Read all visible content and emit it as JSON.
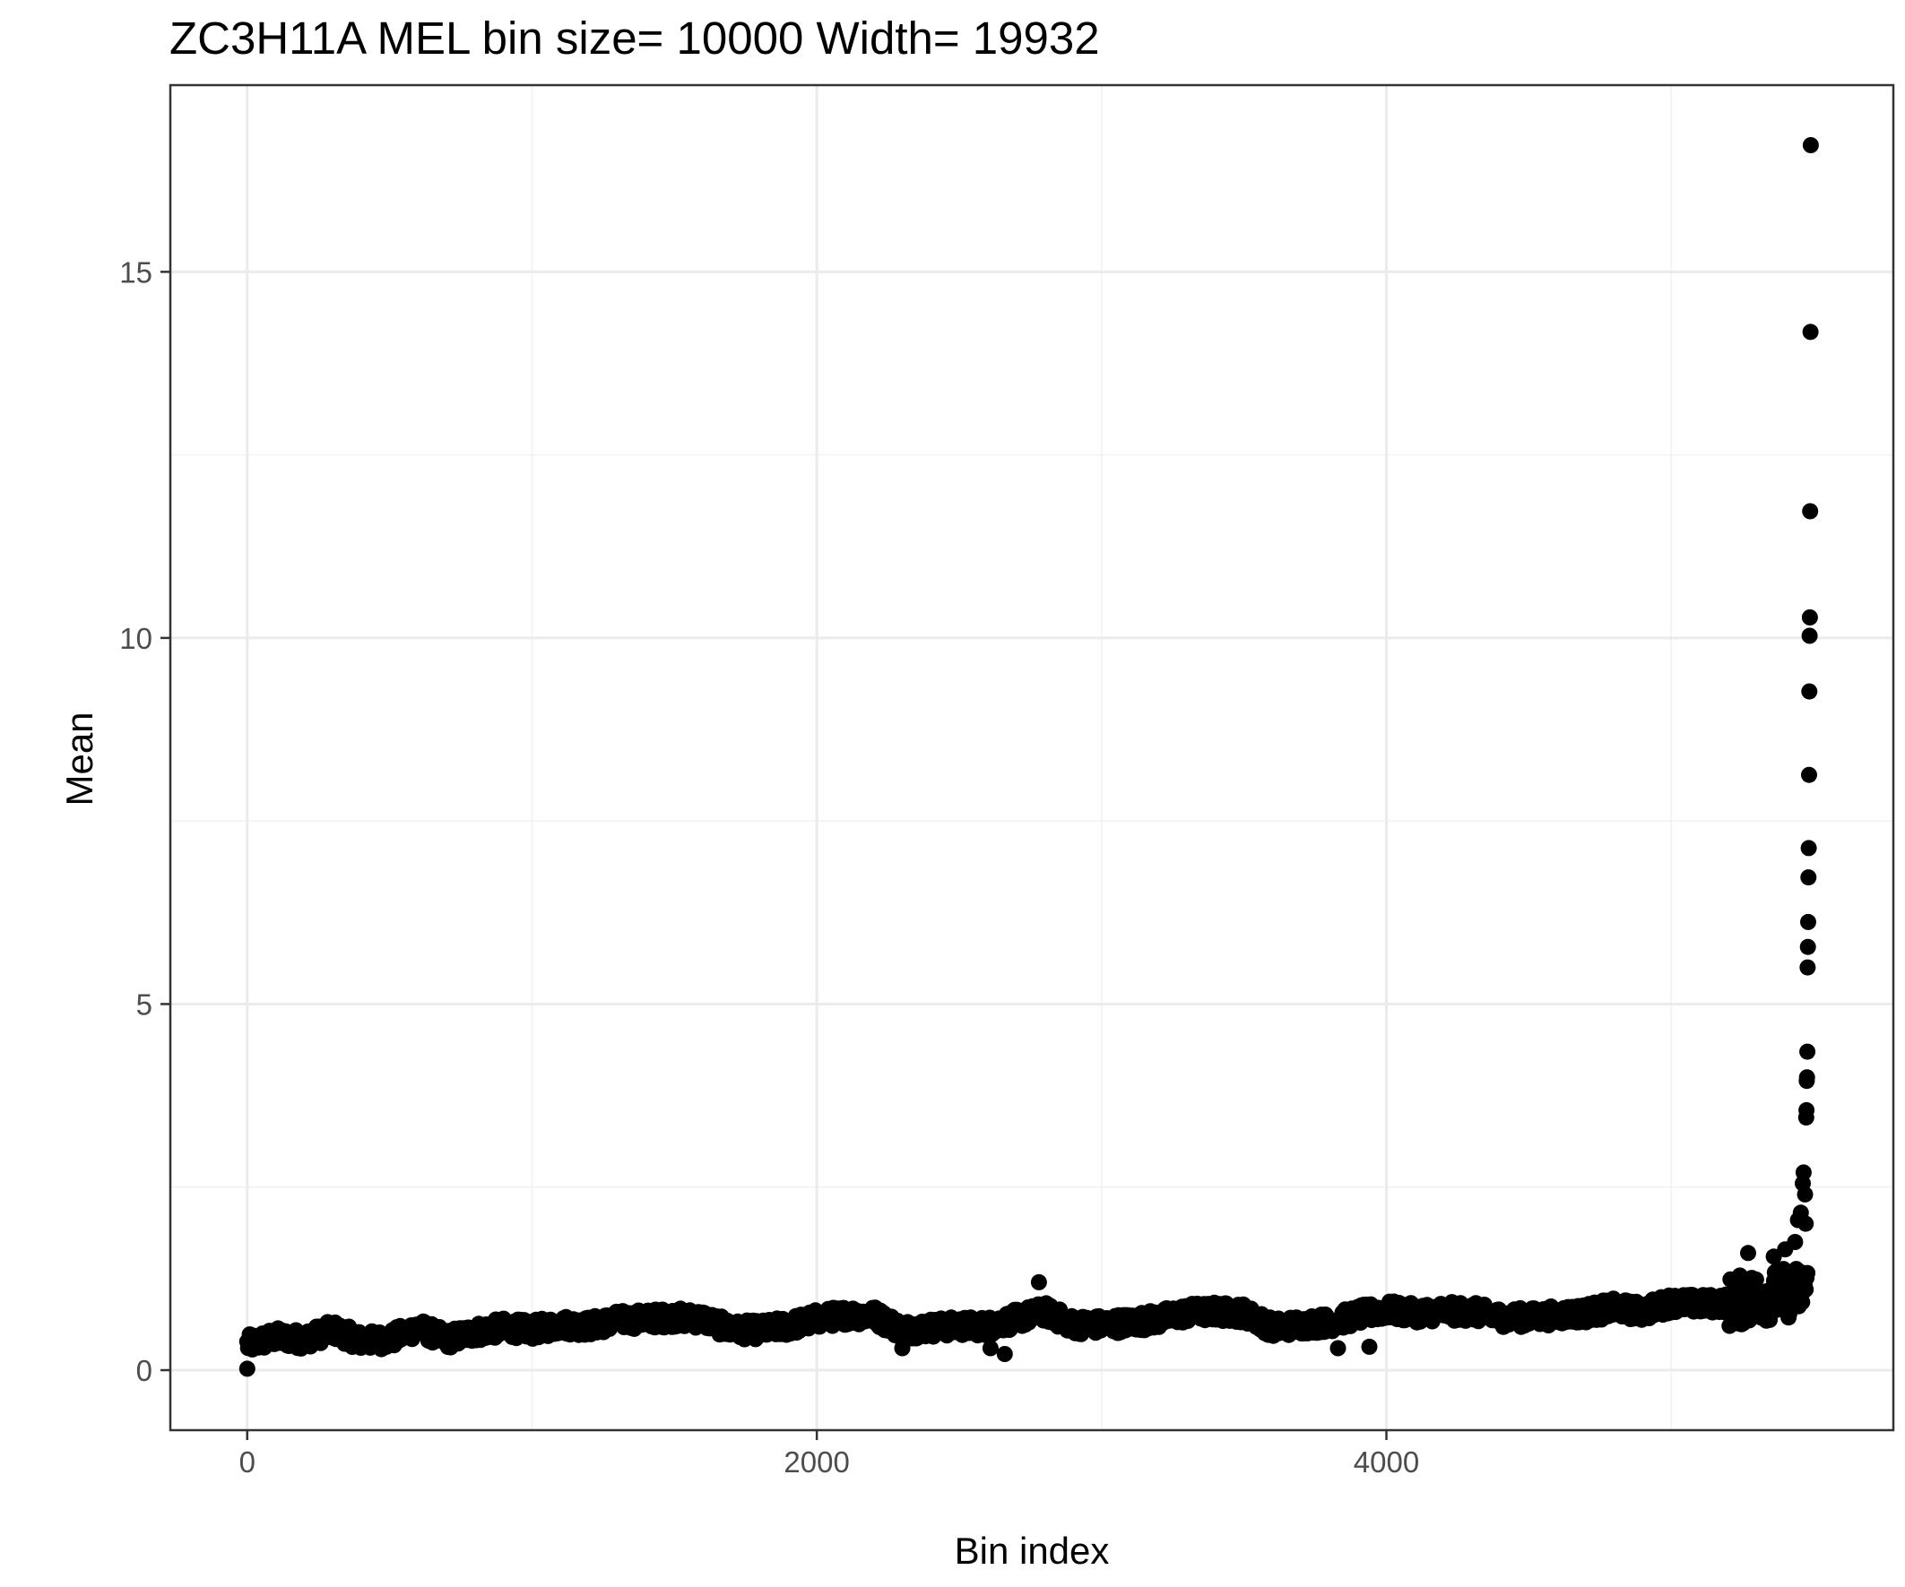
{
  "chart_data": {
    "type": "scatter",
    "title": "ZC3H11A MEL  bin size=  10000  Width=  19932",
    "xlabel": "Bin index",
    "ylabel": "Mean",
    "xlim": [
      -270,
      5780
    ],
    "ylim": [
      -0.82,
      17.55
    ],
    "x_ticks": [
      0,
      2000,
      4000
    ],
    "x_tick_labels": [
      "0",
      "2000",
      "4000"
    ],
    "x_minor_ticks": [
      1000,
      3000,
      5000
    ],
    "y_ticks": [
      0,
      5,
      10,
      15
    ],
    "y_tick_labels": [
      "0",
      "5",
      "10",
      "15"
    ],
    "y_minor_ticks": [
      2.5,
      7.5,
      12.5
    ],
    "grid": true,
    "theme": "bw",
    "point_color": "#000000",
    "trend": {
      "description_points": [
        [
          0,
          0.35
        ],
        [
          100,
          0.45
        ],
        [
          200,
          0.42
        ],
        [
          300,
          0.55
        ],
        [
          400,
          0.4
        ],
        [
          500,
          0.42
        ],
        [
          600,
          0.58
        ],
        [
          700,
          0.42
        ],
        [
          800,
          0.52
        ],
        [
          900,
          0.58
        ],
        [
          1000,
          0.55
        ],
        [
          1100,
          0.62
        ],
        [
          1200,
          0.6
        ],
        [
          1300,
          0.68
        ],
        [
          1400,
          0.7
        ],
        [
          1500,
          0.72
        ],
        [
          1600,
          0.7
        ],
        [
          1700,
          0.55
        ],
        [
          1800,
          0.55
        ],
        [
          1900,
          0.6
        ],
        [
          2000,
          0.7
        ],
        [
          2100,
          0.75
        ],
        [
          2200,
          0.75
        ],
        [
          2300,
          0.55
        ],
        [
          2400,
          0.58
        ],
        [
          2500,
          0.6
        ],
        [
          2600,
          0.6
        ],
        [
          2700,
          0.7
        ],
        [
          2800,
          0.8
        ],
        [
          2900,
          0.62
        ],
        [
          3000,
          0.62
        ],
        [
          3100,
          0.65
        ],
        [
          3200,
          0.7
        ],
        [
          3300,
          0.78
        ],
        [
          3400,
          0.8
        ],
        [
          3500,
          0.78
        ],
        [
          3600,
          0.58
        ],
        [
          3700,
          0.62
        ],
        [
          3800,
          0.65
        ],
        [
          3900,
          0.75
        ],
        [
          4000,
          0.82
        ],
        [
          4100,
          0.78
        ],
        [
          4200,
          0.8
        ],
        [
          4300,
          0.8
        ],
        [
          4400,
          0.72
        ],
        [
          4500,
          0.72
        ],
        [
          4600,
          0.75
        ],
        [
          4700,
          0.78
        ],
        [
          4800,
          0.85
        ],
        [
          4900,
          0.8
        ],
        [
          5000,
          0.92
        ],
        [
          5100,
          0.9
        ],
        [
          5200,
          0.92
        ],
        [
          5300,
          1.0
        ],
        [
          5400,
          1.05
        ],
        [
          5480,
          1.1
        ]
      ],
      "x_start": 0,
      "x_end": 5480
    },
    "isolated_points": [
      {
        "x": 0,
        "y": 0.02
      },
      {
        "x": 2660,
        "y": 0.22
      },
      {
        "x": 2610,
        "y": 0.3
      },
      {
        "x": 2300,
        "y": 0.3
      },
      {
        "x": 3830,
        "y": 0.3
      },
      {
        "x": 3940,
        "y": 0.32
      },
      {
        "x": 2780,
        "y": 1.2
      },
      {
        "x": 5270,
        "y": 1.6
      },
      {
        "x": 5360,
        "y": 1.55
      },
      {
        "x": 5400,
        "y": 1.65
      },
      {
        "x": 5435,
        "y": 1.75
      },
      {
        "x": 5445,
        "y": 2.05
      },
      {
        "x": 5455,
        "y": 2.15
      },
      {
        "x": 5462,
        "y": 2.55
      },
      {
        "x": 5465,
        "y": 2.7
      },
      {
        "x": 5470,
        "y": 2.4
      },
      {
        "x": 5472,
        "y": 2.0
      },
      {
        "x": 5474,
        "y": 3.45
      },
      {
        "x": 5475,
        "y": 3.55
      },
      {
        "x": 5476,
        "y": 3.95
      },
      {
        "x": 5477,
        "y": 4.0
      },
      {
        "x": 5478,
        "y": 4.35
      },
      {
        "x": 5479,
        "y": 5.5
      },
      {
        "x": 5480,
        "y": 5.78
      },
      {
        "x": 5481,
        "y": 6.12
      },
      {
        "x": 5482,
        "y": 6.73
      },
      {
        "x": 5483,
        "y": 7.13
      },
      {
        "x": 5484,
        "y": 8.13
      },
      {
        "x": 5485,
        "y": 9.27
      },
      {
        "x": 5486,
        "y": 10.03
      },
      {
        "x": 5487,
        "y": 10.28
      },
      {
        "x": 5488,
        "y": 11.73
      },
      {
        "x": 5489,
        "y": 14.18
      },
      {
        "x": 5490,
        "y": 16.73
      }
    ]
  }
}
